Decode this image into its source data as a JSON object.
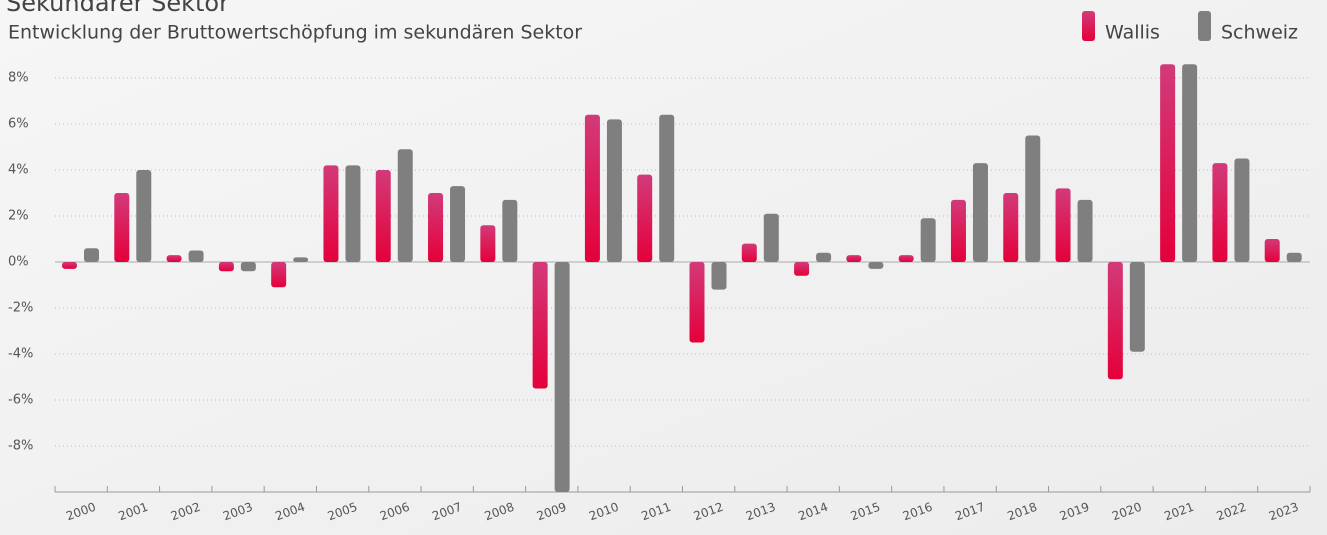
{
  "chart_data": {
    "type": "bar",
    "title": "Sekundärer Sektor",
    "subtitle": "Entwicklung der Bruttowertschöpfung im sekundären Sektor",
    "categories": [
      "2000",
      "2001",
      "2002",
      "2003",
      "2004",
      "2005",
      "2006",
      "2007",
      "2008",
      "2009",
      "2010",
      "2011",
      "2012",
      "2013",
      "2014",
      "2015",
      "2016",
      "2017",
      "2018",
      "2019",
      "2020",
      "2021",
      "2022",
      "2023"
    ],
    "series": [
      {
        "name": "Wallis",
        "color": "#e4003a",
        "values": [
          -0.3,
          3.0,
          0.3,
          -0.4,
          -1.1,
          4.2,
          4.0,
          3.0,
          1.6,
          -5.5,
          6.4,
          3.8,
          -3.5,
          0.8,
          -0.6,
          0.3,
          0.3,
          2.7,
          3.0,
          3.2,
          -5.1,
          8.6,
          4.3,
          1.0
        ]
      },
      {
        "name": "Schweiz",
        "color": "#7f7f7f",
        "values": [
          0.6,
          4.0,
          0.5,
          -0.4,
          0.2,
          4.2,
          4.9,
          3.3,
          2.7,
          -10,
          6.2,
          6.4,
          -1.2,
          2.1,
          0.4,
          -0.3,
          1.9,
          4.3,
          5.5,
          2.7,
          -3.9,
          8.6,
          4.5,
          0.4
        ]
      }
    ],
    "ylim": [
      -10,
      8.6
    ],
    "yticks": [
      {
        "value": 8,
        "label": "8%"
      },
      {
        "value": 6,
        "label": "6%"
      },
      {
        "value": 4,
        "label": "4%"
      },
      {
        "value": 2,
        "label": "2%"
      },
      {
        "value": 0,
        "label": "0%"
      },
      {
        "value": -2,
        "label": "-2%"
      },
      {
        "value": -4,
        "label": "-4%"
      },
      {
        "value": -6,
        "label": "-6%"
      },
      {
        "value": -8,
        "label": "-8%"
      }
    ],
    "grid": true
  }
}
